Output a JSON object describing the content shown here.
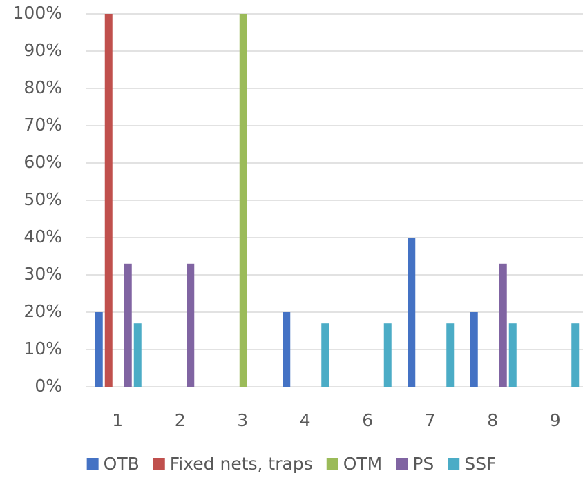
{
  "chart_data": {
    "type": "bar",
    "categories": [
      "1",
      "2",
      "3",
      "4",
      "6",
      "7",
      "8",
      "9"
    ],
    "series": [
      {
        "name": "OTB",
        "color": "#4472c4",
        "values": [
          20,
          0,
          0,
          20,
          0,
          40,
          20,
          0
        ]
      },
      {
        "name": "Fixed nets, traps",
        "color": "#c0504d",
        "values": [
          100,
          0,
          0,
          0,
          0,
          0,
          0,
          0
        ]
      },
      {
        "name": "OTM",
        "color": "#9bbb59",
        "values": [
          0,
          0,
          100,
          0,
          0,
          0,
          0,
          0
        ]
      },
      {
        "name": "PS",
        "color": "#8064a2",
        "values": [
          33,
          33,
          0,
          0,
          0,
          0,
          33,
          0
        ]
      },
      {
        "name": "SSF",
        "color": "#4bacc6",
        "values": [
          17,
          0,
          0,
          17,
          17,
          17,
          17,
          17
        ]
      }
    ],
    "ylim": [
      0,
      100
    ],
    "yticks": [
      {
        "value": 0,
        "label": "0%"
      },
      {
        "value": 10,
        "label": "10%"
      },
      {
        "value": 20,
        "label": "20%"
      },
      {
        "value": 30,
        "label": "30%"
      },
      {
        "value": 40,
        "label": "40%"
      },
      {
        "value": 50,
        "label": "50%"
      },
      {
        "value": 60,
        "label": "60%"
      },
      {
        "value": 70,
        "label": "70%"
      },
      {
        "value": 80,
        "label": "80%"
      },
      {
        "value": 90,
        "label": "90%"
      },
      {
        "value": 100,
        "label": "100%"
      }
    ],
    "grid": true,
    "legend": "bottom"
  }
}
